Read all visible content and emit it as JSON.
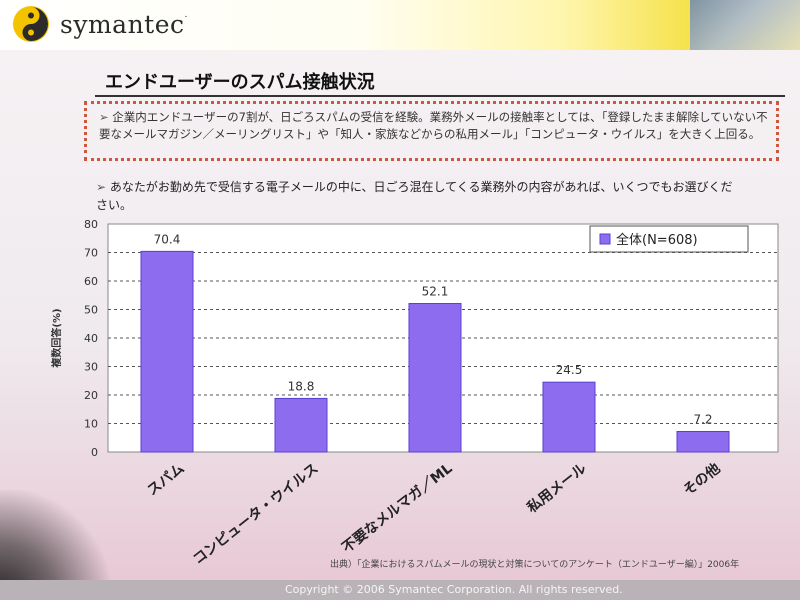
{
  "brand": {
    "logo_text": "symantec",
    "trademark": "."
  },
  "slide": {
    "title": "エンドユーザーのスパム接触状況",
    "summary": "企業内エンドユーザーの7割が、日ごろスパムの受信を経験。業務外メールの接触率としては、「登録したまま解除していない不要なメールマガジン／メーリングリスト」や「知人・家族などからの私用メール」「コンピュータ・ウイルス」を大きく上回る。",
    "question": "あなたがお勤め先で受信する電子メールの中に、日ごろ混在してくる業務外の内容があれば、いくつでもお選びください。",
    "source": "出典）「企業におけるスパムメールの現状と対策についてのアンケート（エンドユーザー編）」2006年",
    "footer": "Copyright © 2006 Symantec Corporation. All rights reserved."
  },
  "chart_data": {
    "type": "bar",
    "categories": [
      "スパム",
      "コンピュータ・ウイルス",
      "不要なメルマガ／ML",
      "私用メール",
      "その他"
    ],
    "series": [
      {
        "name": "全体(N=608)",
        "values": [
          70.4,
          18.8,
          52.1,
          24.5,
          7.2
        ]
      }
    ],
    "value_labels": [
      "70.4",
      "18.8",
      "52.1",
      "24.5",
      "7.2"
    ],
    "ylabel": "複数回答(%)",
    "ylim": [
      0,
      80
    ],
    "yticks": [
      0,
      10,
      20,
      30,
      40,
      50,
      60,
      70,
      80
    ],
    "grid": true,
    "legend": "top-right",
    "bar_color": "#8d6cf0",
    "bar_border": "#5a3fd0"
  },
  "colors": {
    "accent": "#d2563d",
    "bar": "#8d6cf0"
  }
}
